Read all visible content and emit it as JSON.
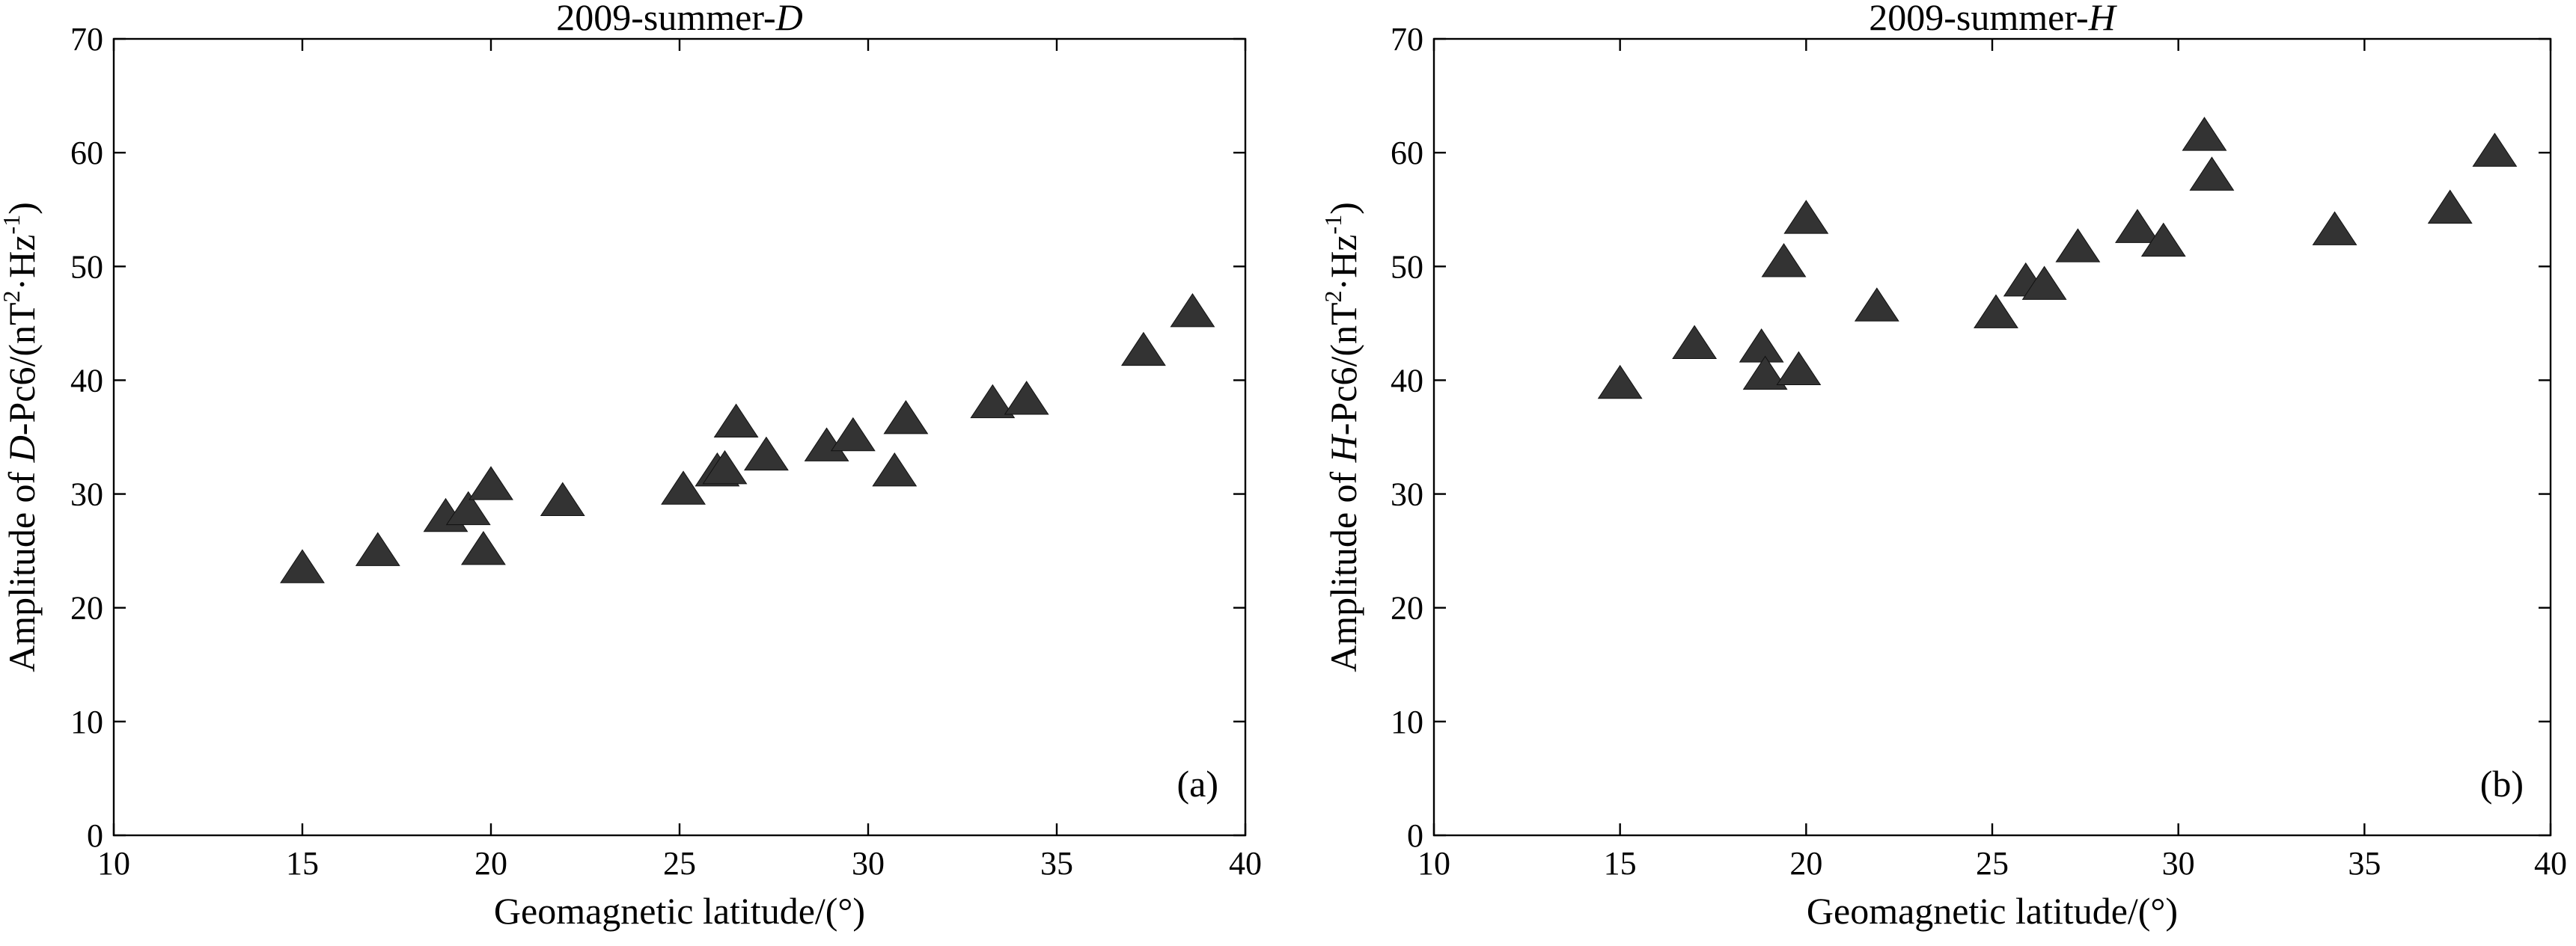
{
  "chart_data": [
    {
      "type": "scatter",
      "title_prefix": "2009-summer-",
      "title_italic": "D",
      "xlabel": "Geomagnetic latitude/(°)",
      "ylabel_parts": [
        "Amplitude of ",
        "D",
        "-Pc6/(nT",
        "2",
        "·Hz",
        "-1",
        ")"
      ],
      "xlim": [
        10,
        40
      ],
      "ylim": [
        0,
        70
      ],
      "xticks": [
        10,
        15,
        20,
        25,
        30,
        35,
        40
      ],
      "yticks": [
        0,
        10,
        20,
        30,
        40,
        50,
        60,
        70
      ],
      "panel_label": "(a)",
      "grid": false,
      "marker": "triangle",
      "marker_color": "#333333",
      "points": [
        {
          "x": 15.0,
          "y": 23.3
        },
        {
          "x": 17.0,
          "y": 24.8
        },
        {
          "x": 18.8,
          "y": 27.8
        },
        {
          "x": 19.4,
          "y": 28.4
        },
        {
          "x": 19.8,
          "y": 24.9
        },
        {
          "x": 20.0,
          "y": 30.6
        },
        {
          "x": 21.9,
          "y": 29.2
        },
        {
          "x": 25.1,
          "y": 30.2
        },
        {
          "x": 26.0,
          "y": 31.8
        },
        {
          "x": 26.2,
          "y": 32.0
        },
        {
          "x": 26.5,
          "y": 36.1
        },
        {
          "x": 27.3,
          "y": 33.2
        },
        {
          "x": 28.9,
          "y": 34.0
        },
        {
          "x": 29.6,
          "y": 34.9
        },
        {
          "x": 30.7,
          "y": 31.8
        },
        {
          "x": 31.0,
          "y": 36.4
        },
        {
          "x": 33.3,
          "y": 37.8
        },
        {
          "x": 34.2,
          "y": 38.1
        },
        {
          "x": 37.3,
          "y": 42.4
        },
        {
          "x": 38.6,
          "y": 45.8
        }
      ]
    },
    {
      "type": "scatter",
      "title_prefix": "2009-summer-",
      "title_italic": "H",
      "xlabel": "Geomagnetic latitude/(°)",
      "ylabel_parts": [
        "Amplitude of ",
        "H",
        "-Pc6/(nT",
        "2",
        "·Hz",
        "-1",
        ")"
      ],
      "xlim": [
        10,
        40
      ],
      "ylim": [
        0,
        70
      ],
      "xticks": [
        10,
        15,
        20,
        25,
        30,
        35,
        40
      ],
      "yticks": [
        0,
        10,
        20,
        30,
        40,
        50,
        60,
        70
      ],
      "panel_label": "(b)",
      "grid": false,
      "marker": "triangle",
      "marker_color": "#333333",
      "points": [
        {
          "x": 15.0,
          "y": 39.5
        },
        {
          "x": 17.0,
          "y": 43.0
        },
        {
          "x": 18.8,
          "y": 42.7
        },
        {
          "x": 18.9,
          "y": 40.3
        },
        {
          "x": 19.4,
          "y": 50.2
        },
        {
          "x": 19.8,
          "y": 40.7
        },
        {
          "x": 20.0,
          "y": 54.0
        },
        {
          "x": 21.9,
          "y": 46.3
        },
        {
          "x": 25.1,
          "y": 45.7
        },
        {
          "x": 25.9,
          "y": 48.5
        },
        {
          "x": 26.4,
          "y": 48.2
        },
        {
          "x": 27.3,
          "y": 51.5
        },
        {
          "x": 28.9,
          "y": 53.2
        },
        {
          "x": 29.6,
          "y": 52.0
        },
        {
          "x": 30.7,
          "y": 61.3
        },
        {
          "x": 30.9,
          "y": 57.8
        },
        {
          "x": 34.2,
          "y": 53.0
        },
        {
          "x": 37.3,
          "y": 54.9
        },
        {
          "x": 38.5,
          "y": 59.9
        }
      ]
    }
  ]
}
